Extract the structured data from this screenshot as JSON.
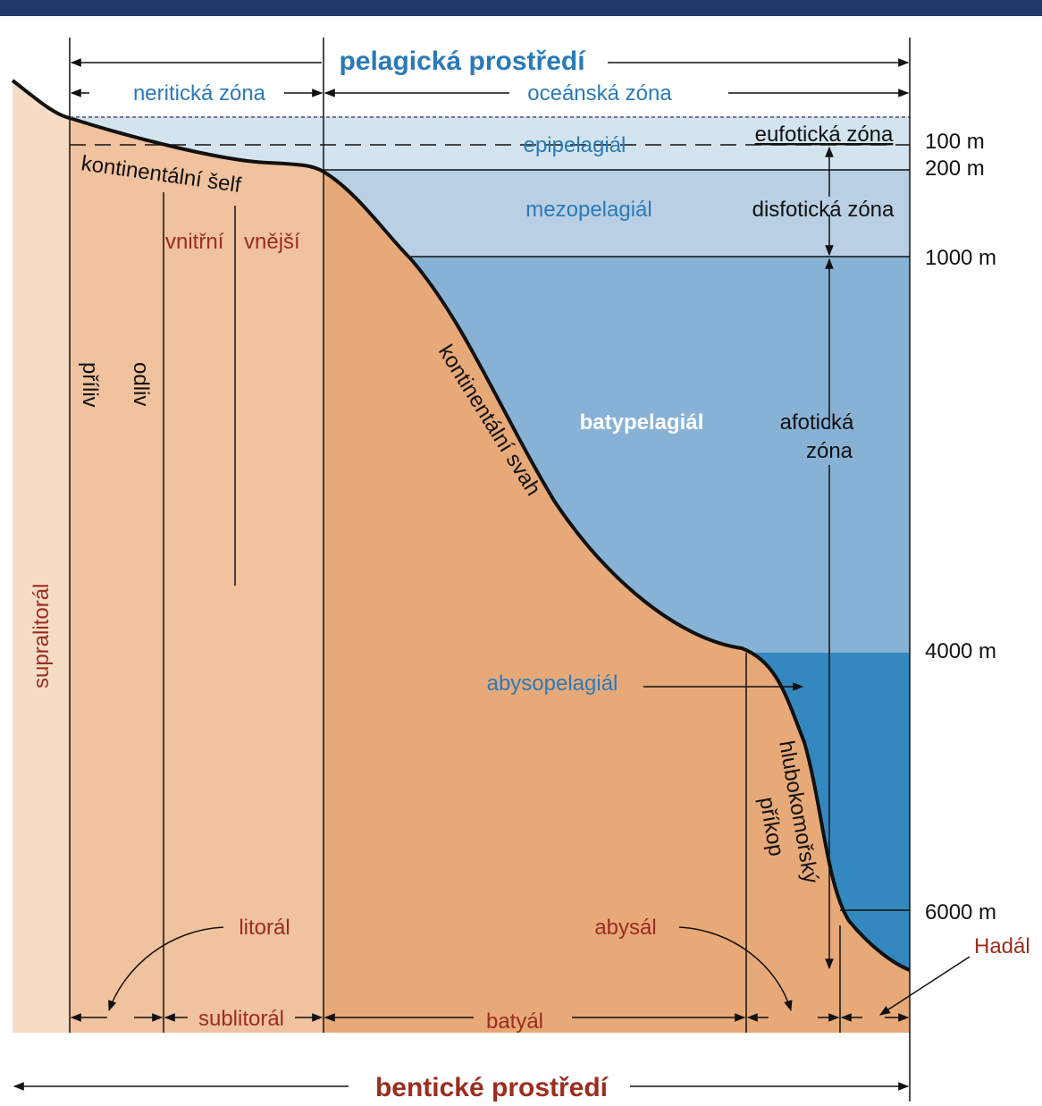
{
  "title": "pelagická prostředí",
  "neritic": "neritická zóna",
  "oceanic": "oceánská zóna",
  "pelagic_zones": {
    "epi": "epipelagiál",
    "mezo": "mezopelagiál",
    "baty": "batypelagiál",
    "abyso": "abysopelagiál"
  },
  "light_zones": {
    "eufotic": "eufotická zóna",
    "disfotic": "disfotická zóna",
    "afotic": [
      "afotická",
      "zóna"
    ]
  },
  "depths": [
    "100 m",
    "200 m",
    "1000 m",
    "4000 m",
    "6000 m"
  ],
  "features": {
    "shelf": "kontinentální šelf",
    "slope": "kontinentální svah",
    "trench": [
      "hlubokomořský",
      "příkop"
    ]
  },
  "shelf_parts": [
    "vnitřní",
    "vnější"
  ],
  "tide": [
    "příliv",
    "odliv"
  ],
  "benthic_zones": {
    "supra": "supralitorál",
    "lit": "litorál",
    "sub": "sublitorál",
    "bat": "batyál",
    "abys": "abysál",
    "hadal": "Hadál"
  },
  "footer": "bentické prostředí"
}
